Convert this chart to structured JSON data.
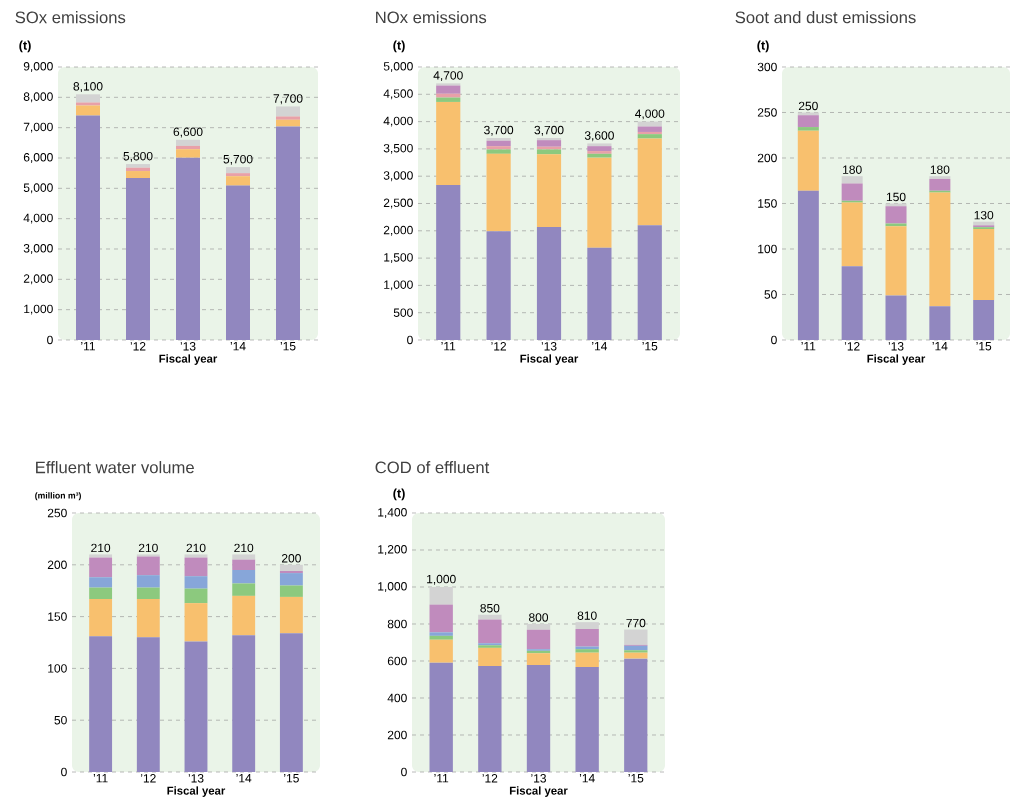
{
  "chart_data": [
    {
      "type": "bar",
      "title": "SOx emissions",
      "ylabel": "(t)",
      "xlabel": "Fiscal year",
      "stacked": true,
      "grid": "y",
      "categories": [
        "’11",
        "’12",
        "’13",
        "’14",
        "’15"
      ],
      "ylim": [
        0,
        9000
      ],
      "yticks": [
        0,
        {
          "value": 1000,
          "label": "1,000"
        },
        {
          "value": 2000,
          "label": "2,000"
        },
        {
          "value": 3000,
          "label": "3,000"
        },
        {
          "value": 4000,
          "label": "4,000"
        },
        {
          "value": 5000,
          "label": "5,000"
        },
        {
          "value": 6000,
          "label": "6,000"
        },
        {
          "value": 7000,
          "label": "7,000"
        },
        {
          "value": 8000,
          "label": "8,000"
        },
        {
          "value": 9000,
          "label": "9,000"
        }
      ],
      "series": [
        {
          "color": "#9187bf",
          "values": [
            7400,
            5340,
            6010,
            5090,
            7040
          ]
        },
        {
          "color": "#f8c06e",
          "values": [
            330,
            230,
            280,
            310,
            220
          ]
        },
        {
          "color": "#e8a0a8",
          "values": [
            100,
            110,
            110,
            100,
            110
          ]
        },
        {
          "color": "#d3d3d3",
          "values": [
            270,
            120,
            200,
            200,
            330
          ]
        }
      ],
      "totals": [
        "8,100",
        "5,800",
        "6,600",
        "5,700",
        "7,700"
      ]
    },
    {
      "type": "bar",
      "title": "NOx emissions",
      "ylabel": "(t)",
      "xlabel": "Fiscal year",
      "stacked": true,
      "grid": "y",
      "categories": [
        "’11",
        "’12",
        "’13",
        "’14",
        "’15"
      ],
      "ylim": [
        0,
        5000
      ],
      "yticks": [
        0,
        500,
        {
          "value": 1000,
          "label": "1,000"
        },
        {
          "value": 1500,
          "label": "1,500"
        },
        {
          "value": 2000,
          "label": "2,000"
        },
        {
          "value": 2500,
          "label": "2,500"
        },
        {
          "value": 3000,
          "label": "3,000"
        },
        {
          "value": 3500,
          "label": "3,500"
        },
        {
          "value": 4000,
          "label": "4,000"
        },
        {
          "value": 4500,
          "label": "4,500"
        },
        {
          "value": 5000,
          "label": "5,000"
        }
      ],
      "series": [
        {
          "color": "#9187bf",
          "values": [
            2840,
            1990,
            2070,
            1690,
            2100
          ]
        },
        {
          "color": "#f8c06e",
          "values": [
            1520,
            1420,
            1330,
            1650,
            1590
          ]
        },
        {
          "color": "#8cc97e",
          "values": [
            80,
            80,
            90,
            70,
            80
          ]
        },
        {
          "color": "#e8a0a8",
          "values": [
            70,
            60,
            50,
            50,
            40
          ]
        },
        {
          "color": "#c08bbd",
          "values": [
            150,
            100,
            120,
            90,
            100
          ]
        },
        {
          "color": "#d3d3d3",
          "values": [
            40,
            50,
            40,
            50,
            90
          ]
        }
      ],
      "totals": [
        "4,700",
        "3,700",
        "3,700",
        "3,600",
        "4,000"
      ]
    },
    {
      "type": "bar",
      "title": "Soot and dust emissions",
      "ylabel": "(t)",
      "xlabel": "Fiscal year",
      "stacked": true,
      "grid": "y",
      "categories": [
        "’11",
        "’12",
        "’13",
        "’14",
        "’15"
      ],
      "ylim": [
        0,
        300
      ],
      "yticks": [
        0,
        50,
        100,
        150,
        200,
        250,
        300
      ],
      "series": [
        {
          "color": "#9187bf",
          "values": [
            164,
            81,
            49,
            37,
            44
          ]
        },
        {
          "color": "#f8c06e",
          "values": [
            66,
            70,
            76,
            125,
            78
          ]
        },
        {
          "color": "#8cc97e",
          "values": [
            4,
            2,
            3,
            2,
            2
          ]
        },
        {
          "color": "#c08bbd",
          "values": [
            13,
            19,
            19,
            13,
            2
          ]
        },
        {
          "color": "#d3d3d3",
          "values": [
            3,
            8,
            3,
            3,
            4
          ]
        }
      ],
      "totals": [
        "250",
        "180",
        "150",
        "180",
        "130"
      ]
    },
    {
      "type": "bar",
      "title": "Effluent water volume",
      "ylabel": "(million m³)",
      "xlabel": "Fiscal year",
      "stacked": true,
      "grid": "y",
      "categories": [
        "’11",
        "’12",
        "’13",
        "’14",
        "’15"
      ],
      "ylim": [
        0,
        250
      ],
      "yticks": [
        0,
        50,
        100,
        150,
        200,
        250
      ],
      "series": [
        {
          "color": "#9187bf",
          "values": [
            131,
            130,
            126,
            132,
            134
          ]
        },
        {
          "color": "#f8c06e",
          "values": [
            36,
            37,
            37,
            38,
            35
          ]
        },
        {
          "color": "#8cc97e",
          "values": [
            11,
            11,
            14,
            12,
            11
          ]
        },
        {
          "color": "#87a6d9",
          "values": [
            10,
            12,
            12,
            13,
            12
          ]
        },
        {
          "color": "#c08bbd",
          "values": [
            19,
            18,
            18,
            10,
            2
          ]
        },
        {
          "color": "#d3d3d3",
          "values": [
            3,
            2,
            3,
            5,
            6
          ]
        }
      ],
      "totals": [
        "210",
        "210",
        "210",
        "210",
        "200"
      ]
    },
    {
      "type": "bar",
      "title": "COD of effluent",
      "ylabel": "(t)",
      "xlabel": "Fiscal year",
      "stacked": true,
      "grid": "y",
      "categories": [
        "’11",
        "’12",
        "’13",
        "’14",
        "’15"
      ],
      "ylim": [
        0,
        1400
      ],
      "yticks": [
        0,
        200,
        400,
        600,
        800,
        {
          "value": 1000,
          "label": "1,000"
        },
        {
          "value": 1200,
          "label": "1,200"
        },
        {
          "value": 1400,
          "label": "1,400"
        }
      ],
      "series": [
        {
          "color": "#9187bf",
          "values": [
            591,
            573,
            578,
            567,
            613
          ]
        },
        {
          "color": "#f8c06e",
          "values": [
            124,
            98,
            64,
            78,
            32
          ]
        },
        {
          "color": "#8cc97e",
          "values": [
            21,
            14,
            13,
            19,
            13
          ]
        },
        {
          "color": "#87a6d9",
          "values": [
            19,
            11,
            9,
            14,
            24
          ]
        },
        {
          "color": "#c08bbd",
          "values": [
            150,
            128,
            105,
            95,
            5
          ]
        },
        {
          "color": "#d3d3d3",
          "values": [
            95,
            26,
            31,
            37,
            83
          ]
        }
      ],
      "totals": [
        "1,000",
        "850",
        "800",
        "810",
        "770"
      ]
    }
  ]
}
